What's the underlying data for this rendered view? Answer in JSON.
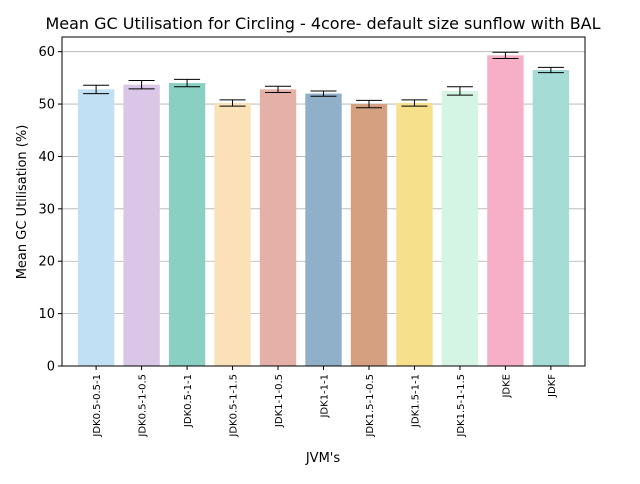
{
  "chart_data": {
    "type": "bar",
    "title": "Mean GC Utilisation for Circling - 4core- default size sunflow with BAL",
    "xlabel": "JVM's",
    "ylabel": "Mean GC Utilisation (%)",
    "ylim": [
      0,
      62.8
    ],
    "yticks": [
      0,
      10,
      20,
      30,
      40,
      50,
      60
    ],
    "grid": "horizontal",
    "categories": [
      "JDK0.5-0.5-1",
      "JDK0.5-1-0.5",
      "JDK0.5-1-1",
      "JDK0.5-1-1.5",
      "JDK1-1-0.5",
      "JDK1-1-1",
      "JDK1.5-1-0.5",
      "JDK1.5-1-1",
      "JDK1.5-1-1.5",
      "JDKE",
      "JDKF"
    ],
    "values": [
      52.8,
      53.7,
      54.0,
      50.2,
      52.8,
      52.0,
      50.0,
      50.2,
      52.5,
      59.3,
      56.5
    ],
    "errors": [
      0.8,
      0.8,
      0.7,
      0.6,
      0.6,
      0.5,
      0.7,
      0.6,
      0.8,
      0.6,
      0.5
    ],
    "colors": [
      "#c2e0f4",
      "#dac6e6",
      "#89d0c2",
      "#fae1b8",
      "#e5b0a8",
      "#8fb0c8",
      "#d4a080",
      "#f7e08c",
      "#d4f4e4",
      "#f7afc8",
      "#a5dcd6"
    ]
  }
}
